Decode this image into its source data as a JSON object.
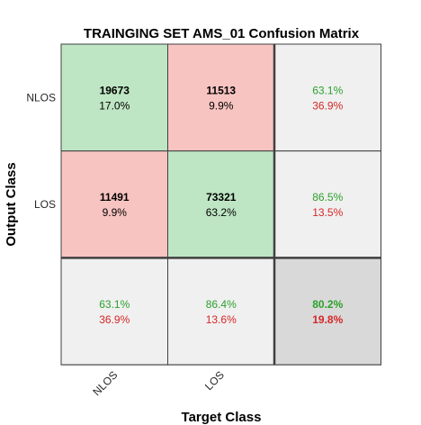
{
  "chart_data": {
    "type": "heatmap",
    "title": "TRAINGING SET AMS_01 Confusion Matrix",
    "xlabel": "Target Class",
    "ylabel": "Output Class",
    "classes": [
      "NLOS",
      "LOS"
    ],
    "cells": [
      [
        {
          "count": "19673",
          "percent": "17.0%",
          "correct": true
        },
        {
          "count": "11513",
          "percent": "9.9%",
          "correct": false
        }
      ],
      [
        {
          "count": "11491",
          "percent": "9.9%",
          "correct": false
        },
        {
          "count": "73321",
          "percent": "63.2%",
          "correct": true
        }
      ]
    ],
    "row_summary": [
      {
        "good": "63.1%",
        "bad": "36.9%"
      },
      {
        "good": "86.5%",
        "bad": "13.5%"
      }
    ],
    "col_summary": [
      {
        "good": "63.1%",
        "bad": "36.9%"
      },
      {
        "good": "86.4%",
        "bad": "13.6%"
      }
    ],
    "overall": {
      "good": "80.2%",
      "bad": "19.8%"
    },
    "colors": {
      "correct": "#bfe6c4",
      "incorrect": "#f8c4c1",
      "summary": "#f0f0f0",
      "overall": "#d9d9d9",
      "good_text": "#2ca02c",
      "bad_text": "#d62728",
      "grid": "#404040"
    }
  }
}
